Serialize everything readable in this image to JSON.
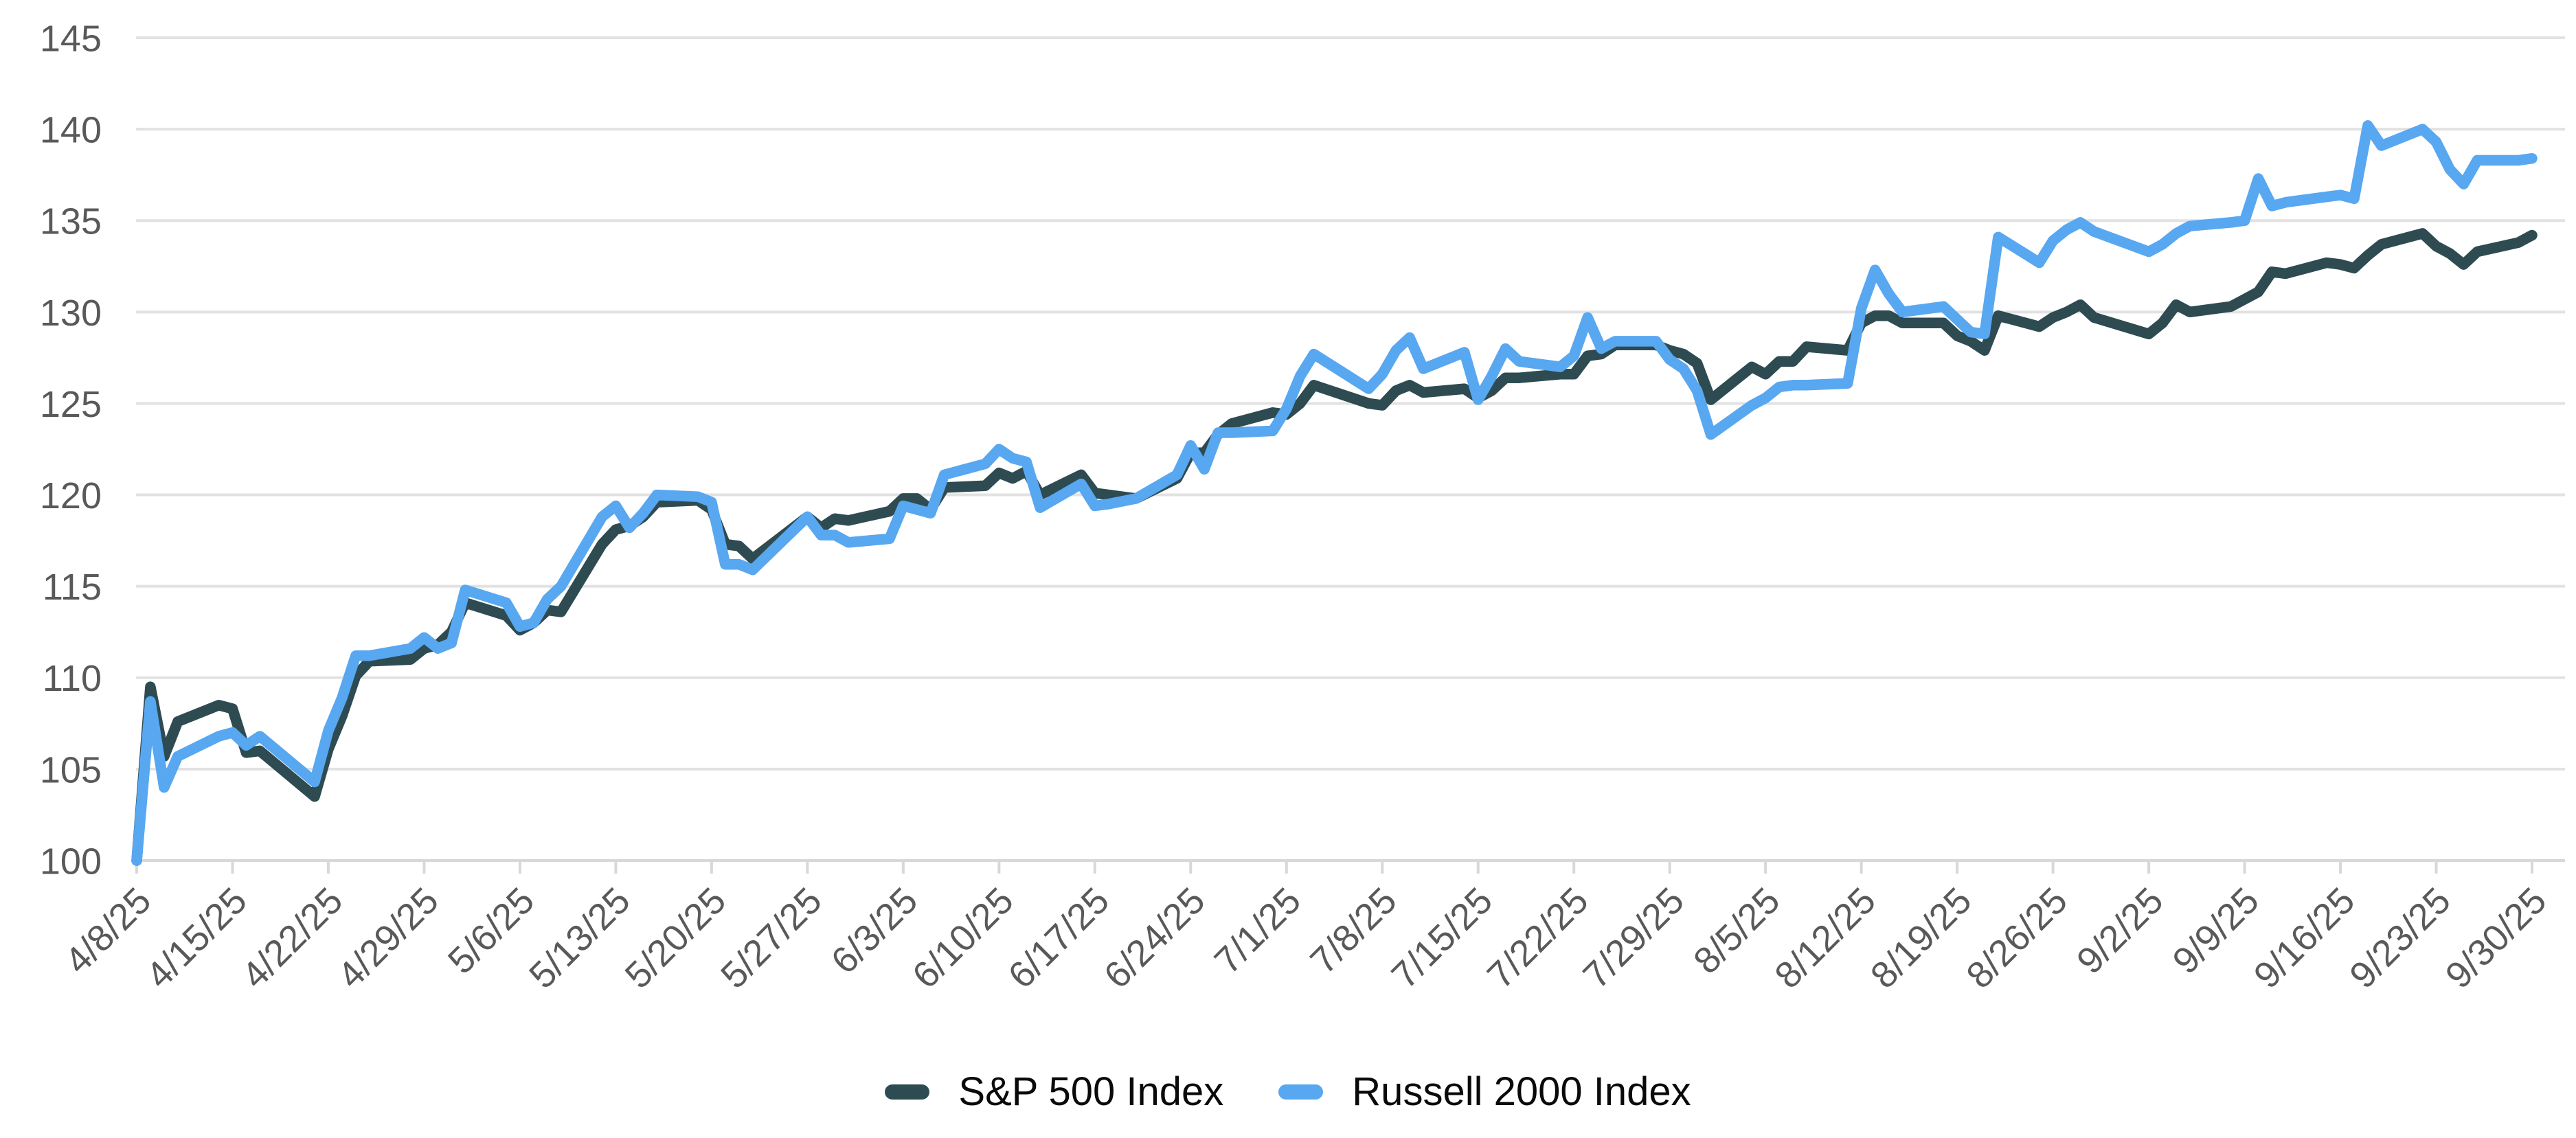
{
  "chart_data": {
    "type": "line",
    "title": "",
    "xlabel": "",
    "ylabel": "",
    "grid": true,
    "legend_position": "bottom",
    "ylim": [
      100,
      145
    ],
    "y_ticks": [
      100,
      105,
      110,
      115,
      120,
      125,
      130,
      135,
      140,
      145
    ],
    "x_tick_labels": [
      "4/8/25",
      "4/15/25",
      "4/22/25",
      "4/29/25",
      "5/6/25",
      "5/13/25",
      "5/20/25",
      "5/27/25",
      "6/3/25",
      "6/10/25",
      "6/17/25",
      "6/24/25",
      "7/1/25",
      "7/8/25",
      "7/15/25",
      "7/22/25",
      "7/29/25",
      "8/5/25",
      "8/12/25",
      "8/19/25",
      "8/26/25",
      "9/2/25",
      "9/9/25",
      "9/16/25",
      "9/23/25",
      "9/30/25"
    ],
    "dates": [
      "4/8/25",
      "4/9/25",
      "4/10/25",
      "4/11/25",
      "4/14/25",
      "4/15/25",
      "4/16/25",
      "4/17/25",
      "4/21/25",
      "4/22/25",
      "4/23/25",
      "4/24/25",
      "4/25/25",
      "4/28/25",
      "4/29/25",
      "4/30/25",
      "5/1/25",
      "5/2/25",
      "5/5/25",
      "5/6/25",
      "5/7/25",
      "5/8/25",
      "5/9/25",
      "5/12/25",
      "5/13/25",
      "5/14/25",
      "5/15/25",
      "5/16/25",
      "5/19/25",
      "5/20/25",
      "5/21/25",
      "5/22/25",
      "5/23/25",
      "5/27/25",
      "5/28/25",
      "5/29/25",
      "5/30/25",
      "6/2/25",
      "6/3/25",
      "6/4/25",
      "6/5/25",
      "6/6/25",
      "6/9/25",
      "6/10/25",
      "6/11/25",
      "6/12/25",
      "6/13/25",
      "6/16/25",
      "6/17/25",
      "6/18/25",
      "6/20/25",
      "6/23/25",
      "6/24/25",
      "6/25/25",
      "6/26/25",
      "6/27/25",
      "6/30/25",
      "7/1/25",
      "7/2/25",
      "7/3/25",
      "7/7/25",
      "7/8/25",
      "7/9/25",
      "7/10/25",
      "7/11/25",
      "7/14/25",
      "7/15/25",
      "7/16/25",
      "7/17/25",
      "7/18/25",
      "7/21/25",
      "7/22/25",
      "7/23/25",
      "7/24/25",
      "7/25/25",
      "7/28/25",
      "7/29/25",
      "7/30/25",
      "7/31/25",
      "8/1/25",
      "8/4/25",
      "8/5/25",
      "8/6/25",
      "8/7/25",
      "8/8/25",
      "8/11/25",
      "8/12/25",
      "8/13/25",
      "8/14/25",
      "8/15/25",
      "8/18/25",
      "8/19/25",
      "8/20/25",
      "8/21/25",
      "8/22/25",
      "8/25/25",
      "8/26/25",
      "8/27/25",
      "8/28/25",
      "8/29/25",
      "9/2/25",
      "9/3/25",
      "9/4/25",
      "9/5/25",
      "9/8/25",
      "9/9/25",
      "9/10/25",
      "9/11/25",
      "9/12/25",
      "9/15/25",
      "9/16/25",
      "9/17/25",
      "9/18/25",
      "9/19/25",
      "9/22/25",
      "9/23/25",
      "9/24/25",
      "9/25/25",
      "9/26/25",
      "9/29/25",
      "9/30/25"
    ],
    "series": [
      {
        "name": "S&P 500 Index",
        "color": "#2E4B52",
        "values": [
          100,
          109.5,
          105.7,
          107.6,
          108.5,
          108.3,
          105.9,
          106.0,
          103.5,
          106.1,
          107.9,
          110.1,
          110.9,
          111.0,
          111.6,
          111.8,
          112.5,
          114.1,
          113.4,
          112.6,
          113.0,
          113.7,
          113.6,
          117.3,
          118.1,
          118.3,
          118.8,
          119.6,
          119.7,
          119.2,
          117.3,
          117.2,
          116.5,
          118.8,
          118.2,
          118.7,
          118.6,
          119.1,
          119.8,
          119.8,
          119.2,
          120.4,
          120.5,
          121.2,
          120.9,
          121.3,
          120.0,
          121.1,
          120.1,
          120.0,
          119.8,
          120.9,
          122.3,
          122.3,
          123.3,
          123.9,
          124.5,
          124.4,
          125.0,
          126.0,
          125.0,
          124.9,
          125.7,
          126.0,
          125.6,
          125.8,
          125.3,
          125.7,
          126.4,
          126.4,
          126.6,
          126.6,
          127.6,
          127.7,
          128.2,
          128.2,
          127.9,
          127.7,
          127.2,
          125.2,
          127.0,
          126.6,
          127.3,
          127.3,
          128.1,
          127.9,
          129.4,
          129.8,
          129.8,
          129.4,
          129.4,
          128.7,
          128.4,
          127.9,
          129.8,
          129.2,
          129.7,
          130.0,
          130.4,
          129.7,
          128.8,
          129.4,
          130.4,
          130.0,
          130.3,
          130.7,
          131.1,
          132.2,
          132.1,
          132.7,
          132.6,
          132.4,
          133.1,
          133.7,
          134.3,
          133.6,
          133.2,
          132.6,
          133.3,
          133.8,
          134.2
        ]
      },
      {
        "name": "Russell 2000 Index",
        "color": "#58A7F1",
        "values": [
          100,
          108.7,
          104.0,
          105.7,
          106.8,
          107.0,
          106.3,
          106.8,
          104.3,
          107.1,
          108.9,
          111.2,
          111.2,
          111.6,
          112.2,
          111.6,
          111.9,
          114.8,
          114.1,
          112.8,
          113.0,
          114.3,
          115.0,
          118.8,
          119.4,
          118.2,
          119.0,
          120.0,
          119.9,
          119.6,
          116.2,
          116.2,
          115.9,
          118.8,
          117.8,
          117.8,
          117.4,
          117.6,
          119.4,
          119.2,
          119.0,
          121.1,
          121.7,
          122.5,
          122.0,
          121.8,
          119.3,
          120.6,
          119.4,
          119.5,
          119.8,
          121.1,
          122.7,
          121.4,
          123.4,
          123.4,
          123.5,
          124.7,
          126.5,
          127.7,
          125.8,
          126.6,
          127.9,
          128.6,
          126.9,
          127.8,
          125.2,
          126.5,
          128.0,
          127.3,
          127.0,
          127.6,
          129.7,
          128.0,
          128.4,
          128.4,
          127.4,
          126.9,
          125.7,
          123.3,
          124.9,
          125.3,
          125.9,
          126.0,
          126.0,
          126.1,
          130.2,
          132.3,
          131.0,
          130.0,
          130.3,
          129.6,
          128.9,
          128.8,
          134.1,
          132.7,
          133.9,
          134.5,
          134.9,
          134.4,
          133.3,
          133.7,
          134.3,
          134.7,
          134.9,
          135.0,
          137.3,
          135.8,
          136.0,
          136.3,
          136.4,
          136.2,
          140.2,
          139.1,
          140.0,
          139.3,
          137.8,
          137.0,
          138.3,
          138.3,
          138.4
        ]
      }
    ],
    "colors": {
      "gridline": "#E2E2E2",
      "axis_line": "#D8D8D8",
      "axis_text": "#595959",
      "legend_text": "#0A0A0A"
    }
  }
}
